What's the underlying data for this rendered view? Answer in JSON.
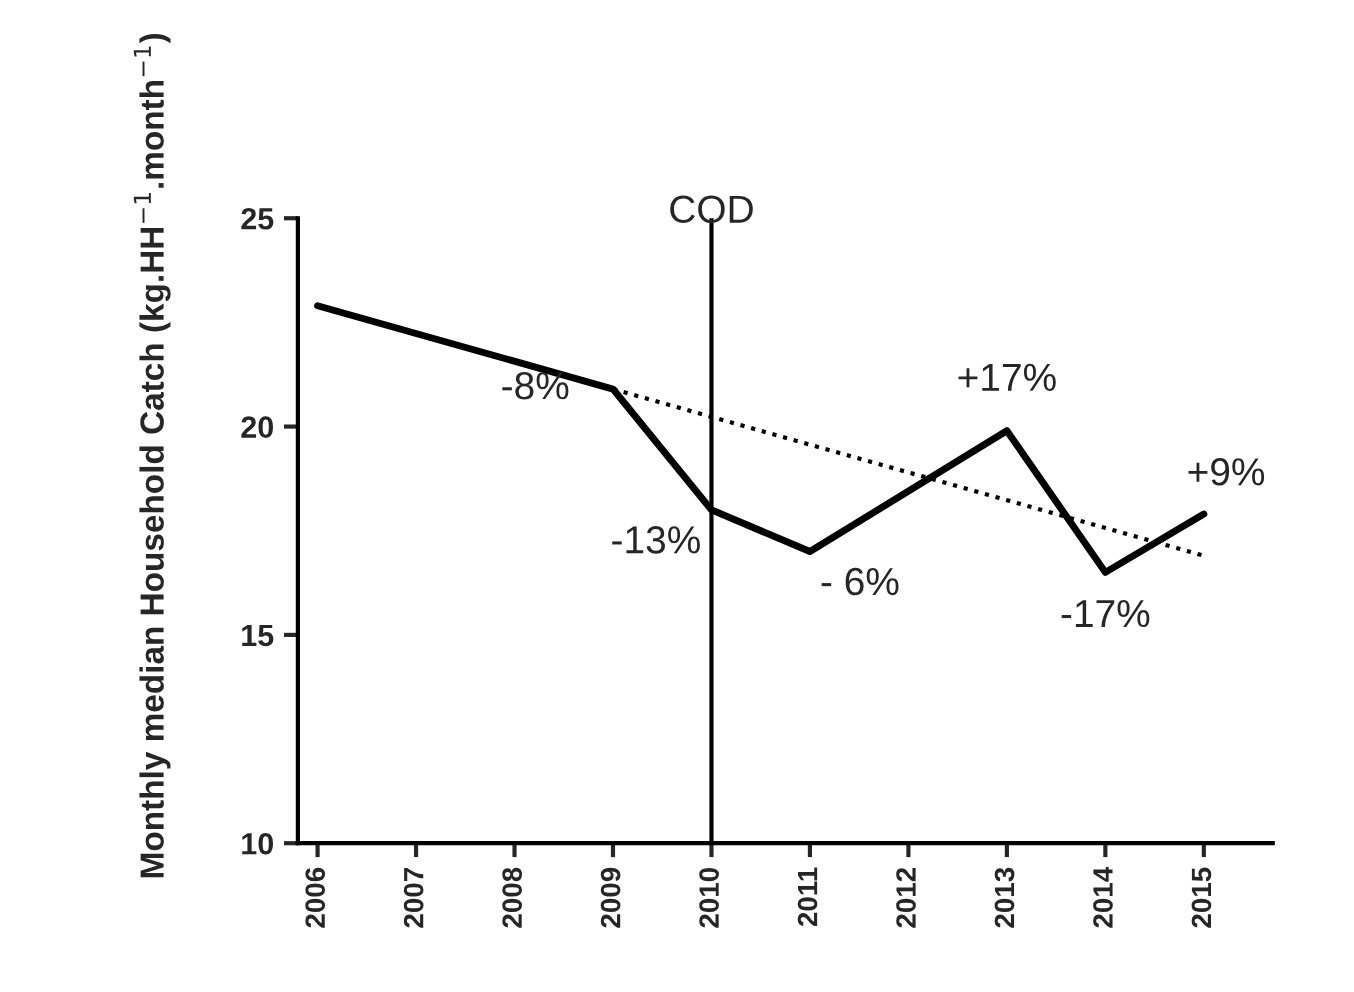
{
  "chart_data": {
    "type": "line",
    "ylabel": "Monthly median Household Catch (kg.HH$^{−1}$.month$^{−1}$)",
    "series": [
      {
        "color": "#000000",
        "x": [
          2006,
          2009,
          2010,
          2011,
          2013,
          2014,
          2015
        ],
        "values": [
          22.9,
          20.9,
          18.0,
          17.0,
          19.9,
          16.5,
          17.9
        ],
        "line_style": "solid"
      },
      {
        "color": "#000000",
        "x": [
          2009,
          2015
        ],
        "values": [
          20.9,
          16.9
        ],
        "line_style": "dotted"
      }
    ],
    "xlim": [
      2005.8,
      2015.7
    ],
    "xticks": [
      2006,
      2007,
      2008,
      2009,
      2010,
      2011,
      2012,
      2013,
      2014,
      2015
    ],
    "ylim": [
      10,
      25
    ],
    "yticks": [
      10,
      15,
      20,
      25
    ],
    "ref_lines": [
      {
        "axis": "x",
        "value": 2010,
        "label": "COD",
        "color": "#000000"
      }
    ],
    "annotations": [
      {
        "text": "-8%",
        "x": 2009,
        "y": 20.9
      },
      {
        "text": "-13%",
        "x": 2010,
        "y": 18.0
      },
      {
        "text": "- 6%",
        "x": 2011,
        "y": 17.0
      },
      {
        "text": "+17%",
        "x": 2013,
        "y": 19.9
      },
      {
        "text": "-17%",
        "x": 2014,
        "y": 16.5
      },
      {
        "text": "+9%",
        "x": 2015,
        "y": 17.9
      }
    ],
    "grid": false,
    "legend": false,
    "marker": "none"
  }
}
